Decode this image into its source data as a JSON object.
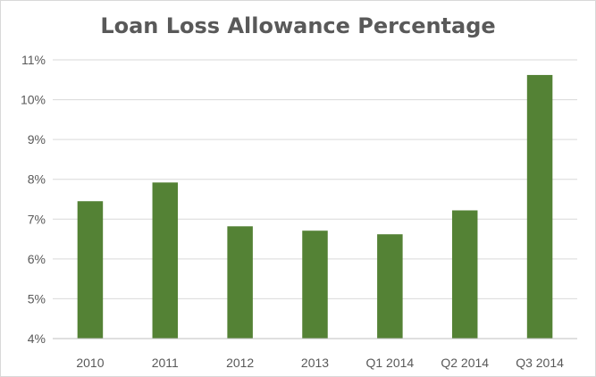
{
  "chart_data": {
    "type": "bar",
    "title": "Loan Loss Allowance Percentage",
    "xlabel": "",
    "ylabel": "",
    "categories": [
      "2010",
      "2011",
      "2012",
      "2013",
      "Q1 2014",
      "Q2 2014",
      "Q3 2014"
    ],
    "values": [
      7.45,
      7.92,
      6.82,
      6.71,
      6.62,
      7.22,
      10.62
    ],
    "ylim": [
      4,
      11
    ],
    "yticks": [
      4,
      5,
      6,
      7,
      8,
      9,
      10,
      11
    ],
    "ytick_labels": [
      "4%",
      "5%",
      "6%",
      "7%",
      "8%",
      "9%",
      "10%",
      "11%"
    ],
    "grid": true,
    "legend": "none",
    "bar_color": "#548235",
    "grid_color": "#d9d9d9",
    "axis_color": "#bfbfbf",
    "text_color": "#595959"
  }
}
